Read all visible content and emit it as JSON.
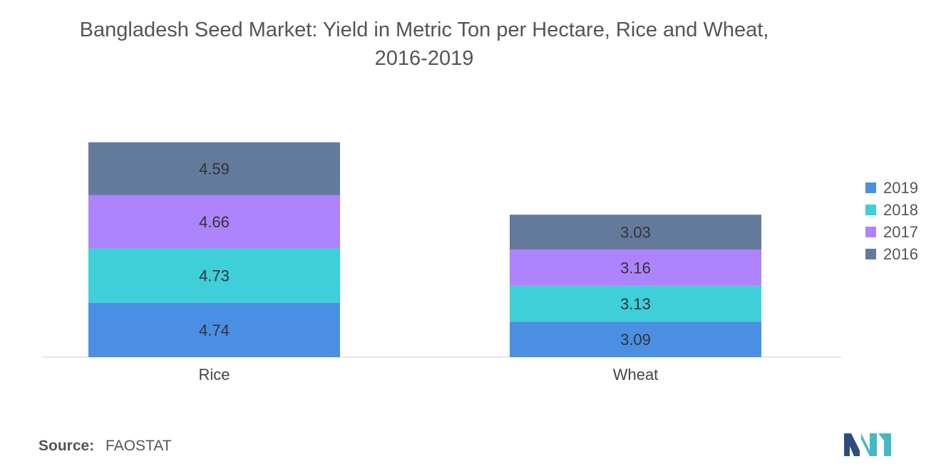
{
  "chart_data": {
    "type": "bar",
    "stacked": true,
    "title": "Bangladesh Seed Market: Yield in Metric Ton per Hectare, Rice and Wheat,",
    "subtitle": "2016-2019",
    "categories": [
      "Rice",
      "Wheat"
    ],
    "series": [
      {
        "name": "2019",
        "color": "#4a8fe2",
        "values": [
          4.74,
          3.09
        ]
      },
      {
        "name": "2018",
        "color": "#3ecfd8",
        "values": [
          4.73,
          3.13
        ]
      },
      {
        "name": "2017",
        "color": "#ad84fb",
        "values": [
          4.66,
          3.16
        ]
      },
      {
        "name": "2016",
        "color": "#647a9d",
        "values": [
          4.59,
          3.03
        ]
      }
    ],
    "legend_position": "right",
    "xlabel": "",
    "ylabel": "",
    "grid": false,
    "axis_color": "#cccccc"
  },
  "source": {
    "label": "Source:",
    "value": "FAOSTAT"
  },
  "logo": {
    "colors": [
      "#45b8c6",
      "#2d4f7e"
    ]
  }
}
